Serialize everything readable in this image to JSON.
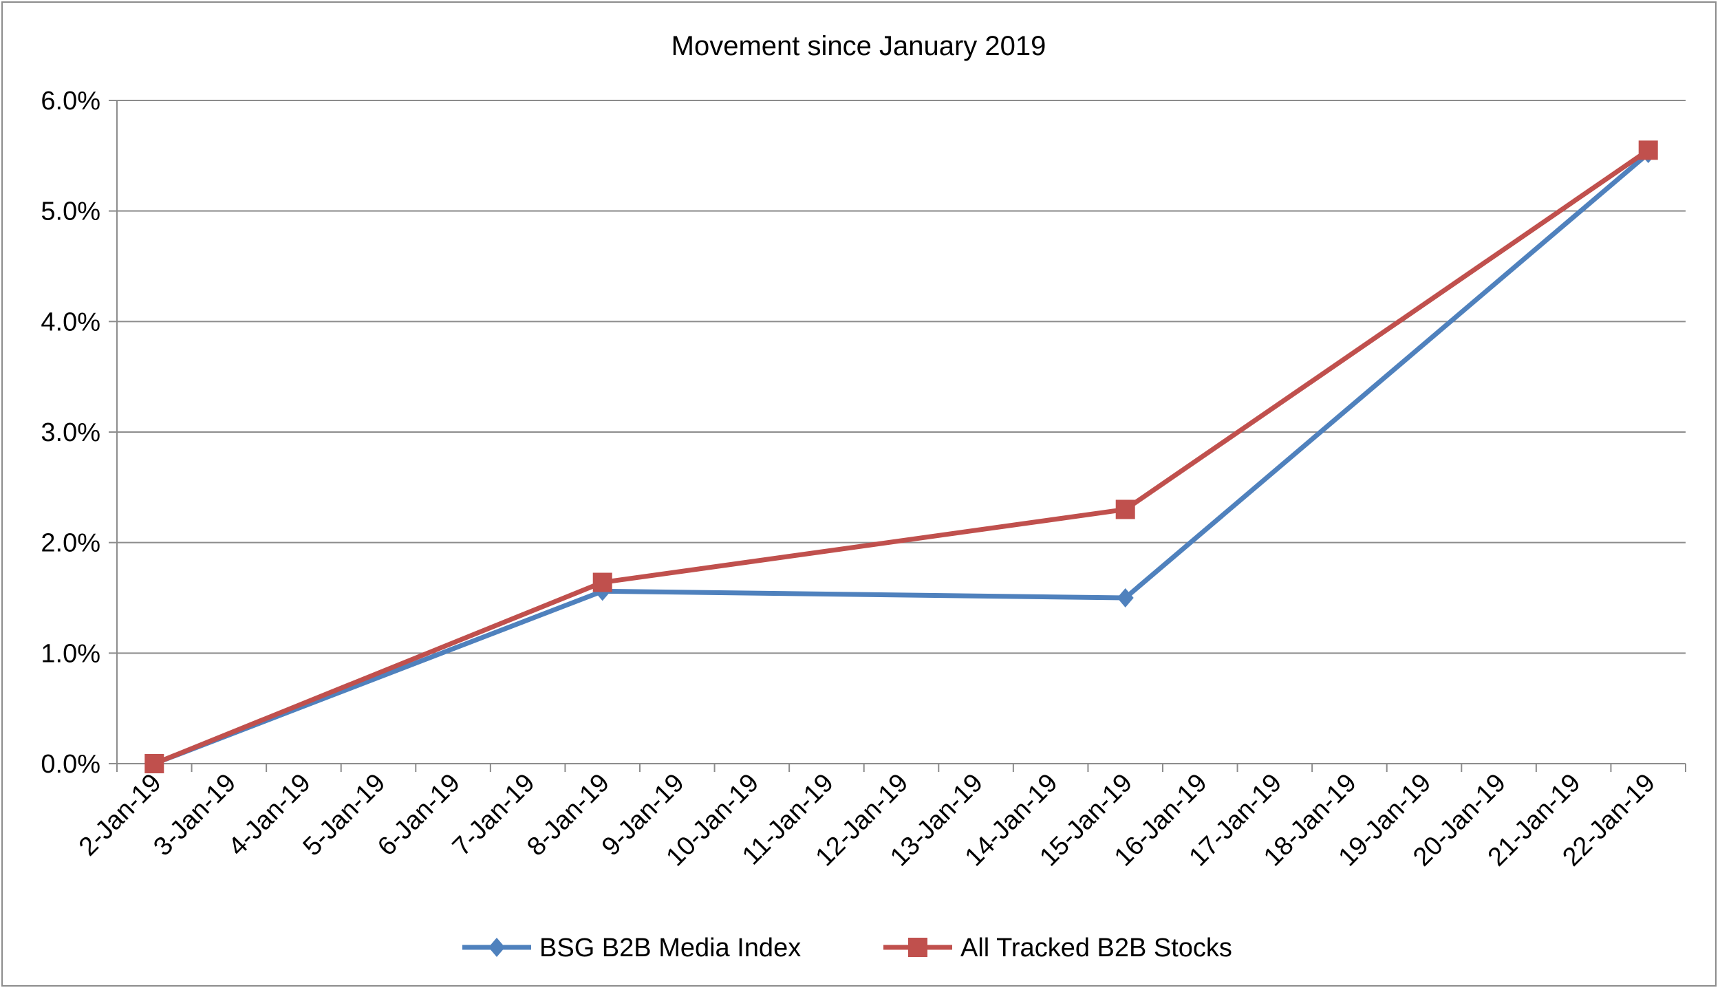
{
  "chart_data": {
    "type": "line",
    "title": "Movement since January 2019",
    "xlabel": "",
    "ylabel": "",
    "categories": [
      "2-Jan-19",
      "3-Jan-19",
      "4-Jan-19",
      "5-Jan-19",
      "6-Jan-19",
      "7-Jan-19",
      "8-Jan-19",
      "9-Jan-19",
      "10-Jan-19",
      "11-Jan-19",
      "12-Jan-19",
      "13-Jan-19",
      "14-Jan-19",
      "15-Jan-19",
      "16-Jan-19",
      "17-Jan-19",
      "18-Jan-19",
      "19-Jan-19",
      "20-Jan-19",
      "21-Jan-19",
      "22-Jan-19"
    ],
    "ylim": [
      0,
      6
    ],
    "yticks": [
      "0.0%",
      "1.0%",
      "2.0%",
      "3.0%",
      "4.0%",
      "5.0%",
      "6.0%"
    ],
    "grid": true,
    "legend_position": "bottom",
    "series": [
      {
        "name": "BSG B2B Media Index",
        "color": "#4f81bd",
        "marker": "diamond",
        "points": [
          {
            "x": "2-Jan-19",
            "y": 0.0
          },
          {
            "x": "8-Jan-19",
            "y": 1.56
          },
          {
            "x": "15-Jan-19",
            "y": 1.5
          },
          {
            "x": "22-Jan-19",
            "y": 5.52
          }
        ]
      },
      {
        "name": "All Tracked B2B Stocks",
        "color": "#c0504d",
        "marker": "square",
        "points": [
          {
            "x": "2-Jan-19",
            "y": 0.0
          },
          {
            "x": "8-Jan-19",
            "y": 1.64
          },
          {
            "x": "15-Jan-19",
            "y": 2.3
          },
          {
            "x": "22-Jan-19",
            "y": 5.55
          }
        ]
      }
    ]
  }
}
